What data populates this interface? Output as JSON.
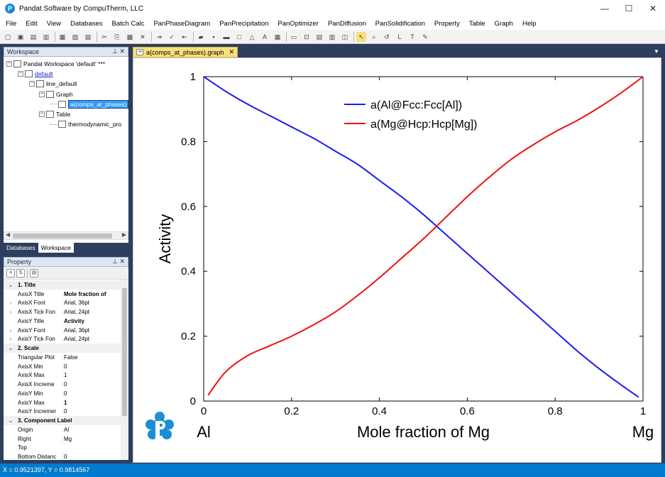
{
  "window": {
    "title": "Pandat Software by CompuTherm, LLC",
    "minimize": "—",
    "maximize": "☐",
    "close": "✕"
  },
  "menu": {
    "items": [
      "File",
      "Edit",
      "View",
      "Databases",
      "Batch Calc",
      "PanPhaseDiagram",
      "PanPrecipitation",
      "PanOptimizer",
      "PanDiffusion",
      "PanSolidification",
      "Property",
      "Table",
      "Graph",
      "Help"
    ]
  },
  "toolbar": {
    "icons": [
      "new-icon",
      "open-icon",
      "folder-icon",
      "save-icon",
      "save-all-icon",
      "print-preview-icon",
      "print-icon",
      "cut-icon",
      "copy-icon",
      "paste-icon",
      "delete-icon",
      "import-icon",
      "check-icon",
      "export-icon",
      "chart-icon",
      "point-icon",
      "line-icon",
      "box-icon",
      "triangle-icon",
      "label-icon",
      "grid-icon",
      "zoom-box-icon",
      "zoom-fit-icon",
      "layout-icon",
      "tile-icon",
      "window-icon",
      "pointer-icon",
      "magnifier-icon",
      "rotate-icon",
      "legend-icon",
      "text-icon",
      "pen-icon"
    ]
  },
  "workspace_panel": {
    "title": "Workspace",
    "pin": "⊥",
    "close": "✕",
    "tree": [
      {
        "label": "Pandat Workspace 'default' ***",
        "style": "normal",
        "box": "−"
      },
      {
        "label": "default",
        "style": "link",
        "box": "−"
      },
      {
        "label": "line_default",
        "style": "normal",
        "box": "−"
      },
      {
        "label": "Graph",
        "style": "normal",
        "box": "−"
      },
      {
        "label": "a(comps_at_phases)",
        "style": "sel",
        "box": ""
      },
      {
        "label": "Table",
        "style": "normal",
        "box": "−"
      },
      {
        "label": "thermodynamic_pro",
        "style": "normal",
        "box": ""
      }
    ],
    "tabs": [
      "Databases",
      "Workspace"
    ],
    "active_tab": "Workspace"
  },
  "property_panel": {
    "title": "Property",
    "pin": "⊥",
    "close": "✕",
    "rows": [
      {
        "type": "cat",
        "name": "1. Title",
        "value": ""
      },
      {
        "type": "prop",
        "name": "AxisX Title",
        "value": "Mole fraction of",
        "bold": true,
        "exp": ""
      },
      {
        "type": "prop",
        "name": "AxisX Font",
        "value": "Arial, 36pt",
        "bold": false,
        "exp": ">"
      },
      {
        "type": "prop",
        "name": "AxisX Tick Fon",
        "value": "Arial, 24pt",
        "bold": false,
        "exp": ">"
      },
      {
        "type": "prop",
        "name": "AxisY Title",
        "value": "Activity",
        "bold": true,
        "exp": ""
      },
      {
        "type": "prop",
        "name": "AxisY Font",
        "value": "Arial, 36pt",
        "bold": false,
        "exp": ">"
      },
      {
        "type": "prop",
        "name": "AxisY Tick Fon",
        "value": "Arial, 24pt",
        "bold": false,
        "exp": ">"
      },
      {
        "type": "cat",
        "name": "2. Scale",
        "value": ""
      },
      {
        "type": "prop",
        "name": "Triangular Plot",
        "value": "False",
        "bold": false,
        "exp": ""
      },
      {
        "type": "prop",
        "name": "AxisX Min",
        "value": "0",
        "bold": false,
        "exp": ""
      },
      {
        "type": "prop",
        "name": "AxisX Max",
        "value": "1",
        "bold": false,
        "exp": ""
      },
      {
        "type": "prop",
        "name": "AxisX Increme",
        "value": "0",
        "bold": false,
        "exp": ""
      },
      {
        "type": "prop",
        "name": "AxisY Min",
        "value": "0",
        "bold": false,
        "exp": ""
      },
      {
        "type": "prop",
        "name": "AxisY Max",
        "value": "1",
        "bold": true,
        "exp": ""
      },
      {
        "type": "prop",
        "name": "AxisY Incremer",
        "value": "0",
        "bold": false,
        "exp": ""
      },
      {
        "type": "cat",
        "name": "3. Component Label",
        "value": ""
      },
      {
        "type": "prop",
        "name": "Origin",
        "value": "Al",
        "bold": false,
        "exp": ""
      },
      {
        "type": "prop",
        "name": "Right",
        "value": "Mg",
        "bold": false,
        "exp": ""
      },
      {
        "type": "prop",
        "name": "Top",
        "value": "",
        "bold": false,
        "exp": ""
      },
      {
        "type": "prop",
        "name": "Bottom Distanc",
        "value": "0",
        "bold": false,
        "exp": ""
      }
    ]
  },
  "document_tab": {
    "label": "a(comps_at_phases).graph",
    "close": "✕"
  },
  "status": {
    "text": "X = 0.9521397, Y = 0.9814567"
  },
  "chart_data": {
    "type": "line",
    "title": "",
    "xlabel": "Mole fraction of Mg",
    "ylabel": "Activity",
    "xlim": [
      0,
      1
    ],
    "ylim": [
      0,
      1
    ],
    "x_ticks": [
      "0",
      "0.2",
      "0.4",
      "0.6",
      "0.8",
      "1"
    ],
    "y_ticks": [
      "0",
      "0.2",
      "0.4",
      "0.6",
      "0.8",
      "1"
    ],
    "component_labels": {
      "origin": "Al",
      "right": "Mg"
    },
    "legend_position": "top-center",
    "grid": false,
    "series": [
      {
        "name": "a(Al@Fcc:Fcc[Al])",
        "color": "#1c1cf0",
        "x": [
          0.0,
          0.05,
          0.1,
          0.15,
          0.2,
          0.25,
          0.3,
          0.35,
          0.4,
          0.45,
          0.5,
          0.55,
          0.6,
          0.65,
          0.7,
          0.75,
          0.8,
          0.85,
          0.9,
          0.95,
          0.99
        ],
        "y": [
          1.0,
          0.955,
          0.915,
          0.88,
          0.845,
          0.81,
          0.77,
          0.73,
          0.68,
          0.63,
          0.575,
          0.515,
          0.455,
          0.395,
          0.335,
          0.275,
          0.215,
          0.155,
          0.1,
          0.05,
          0.012
        ]
      },
      {
        "name": "a(Mg@Hcp:Hcp[Mg])",
        "color": "#f01010",
        "x": [
          0.01,
          0.05,
          0.1,
          0.15,
          0.2,
          0.25,
          0.3,
          0.35,
          0.4,
          0.45,
          0.5,
          0.55,
          0.6,
          0.65,
          0.7,
          0.75,
          0.8,
          0.85,
          0.9,
          0.95,
          1.0
        ],
        "y": [
          0.018,
          0.09,
          0.14,
          0.17,
          0.2,
          0.235,
          0.275,
          0.325,
          0.38,
          0.44,
          0.5,
          0.565,
          0.63,
          0.69,
          0.745,
          0.79,
          0.83,
          0.865,
          0.905,
          0.95,
          1.0
        ]
      }
    ]
  }
}
